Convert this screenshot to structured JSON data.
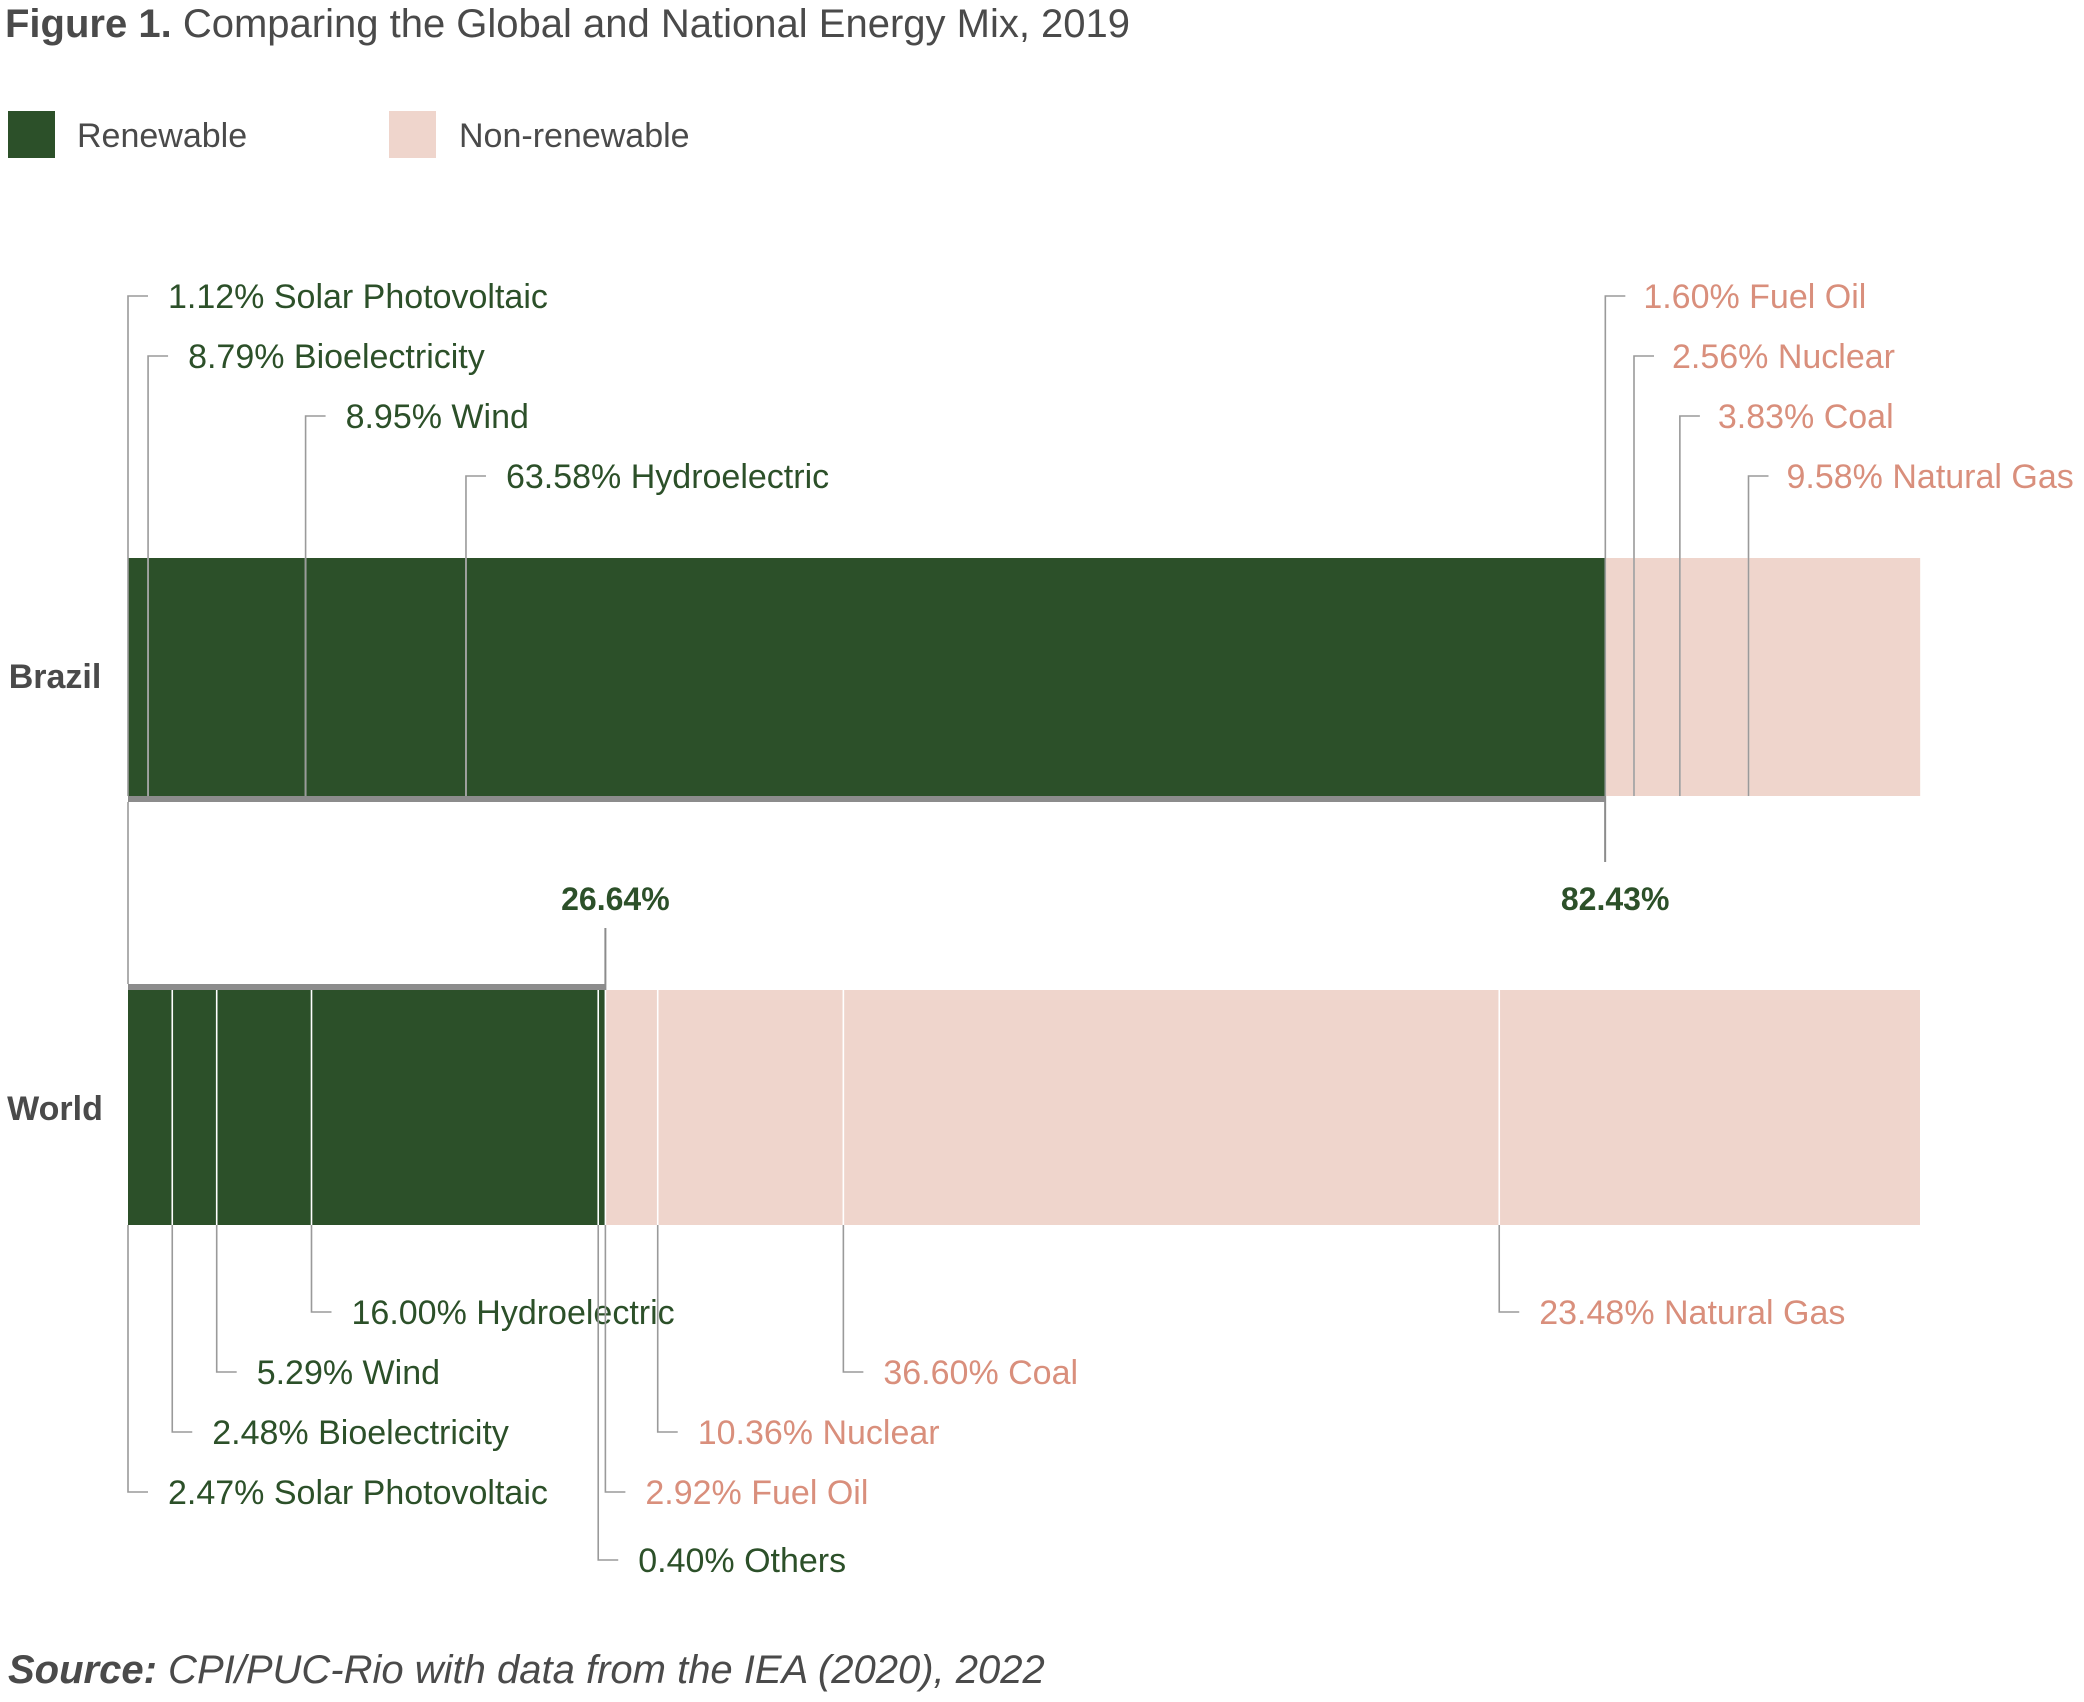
{
  "figure": {
    "label": "Figure 1.",
    "title": "Comparing the Global and National Energy Mix, 2019"
  },
  "legend": [
    {
      "name": "Renewable",
      "color": "#2c5029"
    },
    {
      "name": "Non-renewable",
      "color": "#efd5cc"
    }
  ],
  "colors": {
    "renewable": "#2c5029",
    "non_renewable": "#efd5cc",
    "renewable_text": "#2c5029",
    "non_renewable_text": "#d98f7c",
    "divider": "#ffffff",
    "leader": "#9a9a9a",
    "bracket": "#8c8c8c"
  },
  "chart_data": {
    "type": "bar",
    "orientation": "horizontal",
    "stacked": true,
    "xlim": [
      0,
      100
    ],
    "categories": [
      "Brazil",
      "World"
    ],
    "groups": {
      "Brazil": {
        "renewable_total": 82.43,
        "renewable_total_label": "82.43%",
        "segments": [
          {
            "name": "Solar Photovoltaic",
            "value": 1.12,
            "label": "1.12% Solar Photovoltaic",
            "type": "renewable"
          },
          {
            "name": "Bioelectricity",
            "value": 8.79,
            "label": "8.79% Bioelectricity",
            "type": "renewable"
          },
          {
            "name": "Wind",
            "value": 8.95,
            "label": "8.95% Wind",
            "type": "renewable"
          },
          {
            "name": "Hydroelectric",
            "value": 63.58,
            "label": "63.58% Hydroelectric",
            "type": "renewable"
          },
          {
            "name": "Fuel Oil",
            "value": 1.6,
            "label": "1.60% Fuel Oil",
            "type": "non-renewable"
          },
          {
            "name": "Nuclear",
            "value": 2.56,
            "label": "2.56% Nuclear",
            "type": "non-renewable"
          },
          {
            "name": "Coal",
            "value": 3.83,
            "label": "3.83% Coal",
            "type": "non-renewable"
          },
          {
            "name": "Natural Gas",
            "value": 9.58,
            "label": "9.58% Natural Gas",
            "type": "non-renewable"
          }
        ]
      },
      "World": {
        "renewable_total": 26.64,
        "renewable_total_label": "26.64%",
        "segments": [
          {
            "name": "Solar Photovoltaic",
            "value": 2.47,
            "label": "2.47% Solar Photovoltaic",
            "type": "renewable"
          },
          {
            "name": "Bioelectricity",
            "value": 2.48,
            "label": "2.48% Bioelectricity",
            "type": "renewable"
          },
          {
            "name": "Wind",
            "value": 5.29,
            "label": "5.29% Wind",
            "type": "renewable"
          },
          {
            "name": "Hydroelectric",
            "value": 16.0,
            "label": "16.00% Hydroelectric",
            "type": "renewable"
          },
          {
            "name": "Others",
            "value": 0.4,
            "label": "0.40% Others",
            "type": "renewable"
          },
          {
            "name": "Fuel Oil",
            "value": 2.92,
            "label": "2.92% Fuel Oil",
            "type": "non-renewable"
          },
          {
            "name": "Nuclear",
            "value": 10.36,
            "label": "10.36% Nuclear",
            "type": "non-renewable"
          },
          {
            "name": "Coal",
            "value": 36.6,
            "label": "36.60% Coal",
            "type": "non-renewable"
          },
          {
            "name": "Natural Gas",
            "value": 23.48,
            "label": "23.48% Natural Gas",
            "type": "non-renewable"
          }
        ]
      }
    }
  },
  "source": {
    "label": "Source:",
    "text": " CPI/PUC-Rio with data from the IEA (2020), 2022"
  }
}
